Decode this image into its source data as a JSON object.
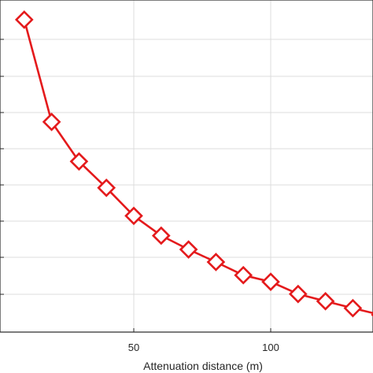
{
  "chart_data": {
    "type": "line",
    "xlabel": "Attenuation distance (m)",
    "ylabel": "",
    "title": "",
    "xlim": [
      0,
      140
    ],
    "xticks": [
      50,
      100
    ],
    "xtick_labels": [
      "50",
      "100"
    ],
    "grid": true,
    "series": [
      {
        "color": "#e41a1c",
        "marker": "diamond",
        "x": [
          10,
          20,
          30,
          40,
          50,
          60,
          70,
          80,
          90,
          100,
          110,
          120,
          130,
          140
        ],
        "y": [
          0.95,
          0.64,
          0.52,
          0.44,
          0.355,
          0.295,
          0.253,
          0.215,
          0.175,
          0.155,
          0.118,
          0.096,
          0.075,
          0.055
        ]
      }
    ]
  }
}
